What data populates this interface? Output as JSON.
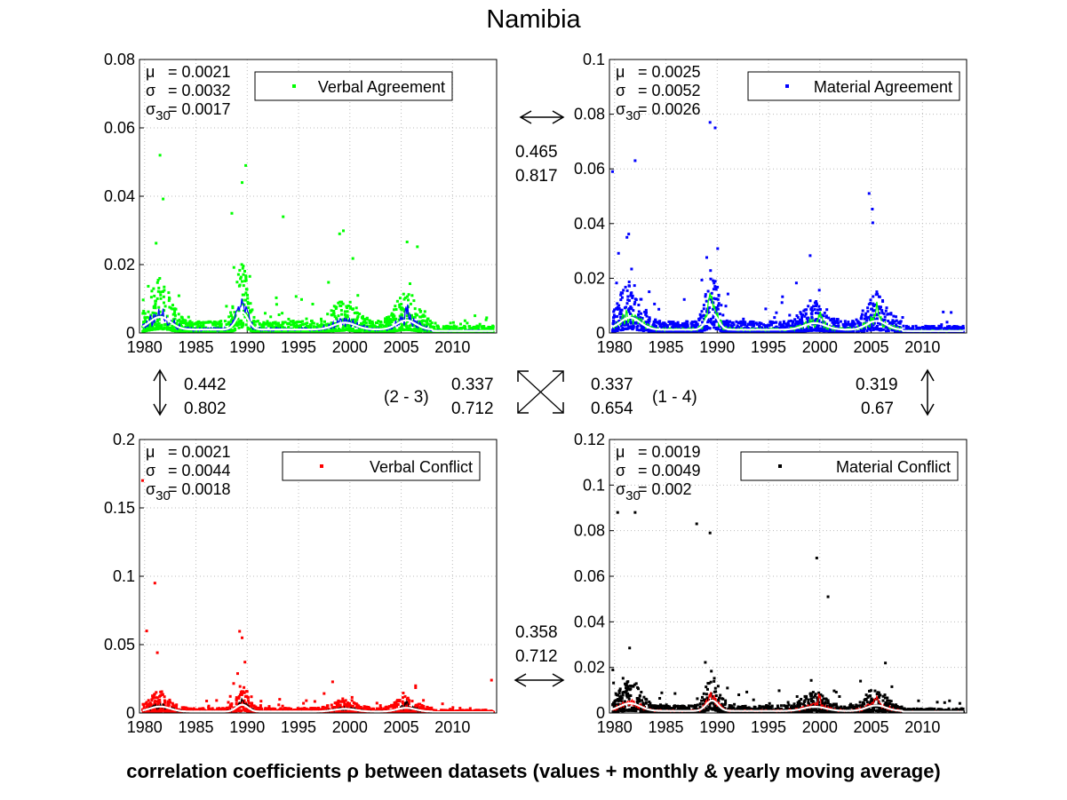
{
  "title": "Namibia",
  "footer": "correlation coefficients ρ between datasets (values + monthly & yearly moving average)",
  "colors": {
    "verbal_agreement": "#00ff00",
    "material_agreement": "#0000ff",
    "verbal_conflict": "#ff0000",
    "material_conflict": "#000000",
    "yearly_average": "#ffffff",
    "grid": "#c8c8c8"
  },
  "stats_labels": {
    "mu": "μ",
    "sigma": "σ",
    "sigma30": "σ30"
  },
  "correlations": {
    "top": {
      "values": [
        "0.465",
        "0.817"
      ]
    },
    "left": {
      "values": [
        "0.442",
        "0.802"
      ]
    },
    "right": {
      "values": [
        "0.319",
        "0.67"
      ]
    },
    "bottom": {
      "values": [
        "0.358",
        "0.712"
      ]
    },
    "diag_2_3": {
      "label": "(2 - 3)",
      "values": [
        "0.337",
        "0.712"
      ]
    },
    "diag_1_4": {
      "label": "(1 - 4)",
      "values": [
        "0.337",
        "0.654"
      ]
    }
  },
  "chart_data": [
    {
      "type": "scatter",
      "series": [
        {
          "name": "Verbal Agreement",
          "color": "#00ff00"
        }
      ],
      "stats": {
        "mu": "= 0.0021",
        "sigma": "= 0.0032",
        "sigma30": "= 0.0017"
      },
      "xlim": [
        1979.5,
        2014.3
      ],
      "ylim": [
        0,
        0.08
      ],
      "xticks": [
        1980,
        1985,
        1990,
        1995,
        2000,
        2005,
        2010
      ],
      "yticks": [
        0,
        0.02,
        0.04,
        0.06,
        0.08
      ],
      "ytick_labels": [
        "0",
        "0.02",
        "0.04",
        "0.06",
        "0.08"
      ],
      "grid": true,
      "legend_position": "top-right",
      "base": 0.0021,
      "peaks": [
        [
          1981.5,
          0.052
        ],
        [
          1989.5,
          0.044
        ],
        [
          1993.5,
          0.034
        ],
        [
          1999,
          0.029
        ],
        [
          1988.5,
          0.035
        ]
      ],
      "avg_color": "#0000ff",
      "yearly_peaks": [
        [
          1981.5,
          0.004
        ],
        [
          1989.5,
          0.006
        ],
        [
          2005.5,
          0.005
        ]
      ]
    },
    {
      "type": "scatter",
      "series": [
        {
          "name": "Material Agreement",
          "color": "#0000ff"
        }
      ],
      "stats": {
        "mu": "= 0.0025",
        "sigma": "= 0.0052",
        "sigma30": "= 0.0026"
      },
      "xlim": [
        1979.5,
        2014.3
      ],
      "ylim": [
        0,
        0.1
      ],
      "xticks": [
        1980,
        1985,
        1990,
        1995,
        2000,
        2005,
        2010
      ],
      "yticks": [
        0,
        0.02,
        0.04,
        0.06,
        0.08,
        0.1
      ],
      "ytick_labels": [
        "0",
        "0.02",
        "0.04",
        "0.06",
        "0.08",
        "0.1"
      ],
      "grid": true,
      "legend_position": "top-right",
      "base": 0.0025,
      "peaks": [
        [
          1989.3,
          0.077
        ],
        [
          1979.8,
          0.059
        ],
        [
          1982,
          0.063
        ],
        [
          2004.8,
          0.051
        ],
        [
          1989.8,
          0.075
        ]
      ],
      "avg_color": "#00ff00",
      "yearly_peaks": [
        [
          1989.3,
          0.011
        ],
        [
          2000,
          0.005
        ],
        [
          2005.5,
          0.006
        ]
      ]
    },
    {
      "type": "scatter",
      "series": [
        {
          "name": "Verbal Conflict",
          "color": "#ff0000"
        }
      ],
      "stats": {
        "mu": "= 0.0021",
        "sigma": "= 0.0044",
        "sigma30": "= 0.0018"
      },
      "xlim": [
        1979.5,
        2014.3
      ],
      "ylim": [
        0,
        0.2
      ],
      "xticks": [
        1980,
        1985,
        1990,
        1995,
        2000,
        2005,
        2010
      ],
      "yticks": [
        0,
        0.05,
        0.1,
        0.15,
        0.2
      ],
      "ytick_labels": [
        "0",
        "0.05",
        "0.1",
        "0.15",
        "0.2"
      ],
      "grid": true,
      "legend_position": "top-right",
      "base": 0.0021,
      "peaks": [
        [
          1979.8,
          0.17
        ],
        [
          1981,
          0.095
        ],
        [
          1980.2,
          0.06
        ],
        [
          1989.5,
          0.055
        ],
        [
          2013.8,
          0.024
        ]
      ],
      "avg_color": "#000000",
      "yearly_peaks": [
        [
          1989.5,
          0.006
        ],
        [
          2005.5,
          0.005
        ]
      ]
    },
    {
      "type": "scatter",
      "series": [
        {
          "name": "Material Conflict",
          "color": "#000000"
        }
      ],
      "stats": {
        "mu": "= 0.0019",
        "sigma": "= 0.0049",
        "sigma30": "= 0.002"
      },
      "xlim": [
        1979.5,
        2014.3
      ],
      "ylim": [
        0,
        0.12
      ],
      "xticks": [
        1980,
        1985,
        1990,
        1995,
        2000,
        2005,
        2010
      ],
      "yticks": [
        0,
        0.02,
        0.04,
        0.06,
        0.08,
        0.1,
        0.12
      ],
      "ytick_labels": [
        "0",
        "0.02",
        "0.04",
        "0.06",
        "0.08",
        "0.1",
        "0.12"
      ],
      "grid": true,
      "legend_position": "top-right",
      "base": 0.0019,
      "peaks": [
        [
          1980.3,
          0.088
        ],
        [
          1982,
          0.088
        ],
        [
          1988,
          0.083
        ],
        [
          1999.7,
          0.068
        ],
        [
          1989.3,
          0.079
        ],
        [
          2000.8,
          0.051
        ]
      ],
      "avg_color": "#ff0000",
      "yearly_peaks": [
        [
          1989.3,
          0.006
        ],
        [
          2000,
          0.006
        ],
        [
          2005.5,
          0.004
        ]
      ]
    }
  ]
}
